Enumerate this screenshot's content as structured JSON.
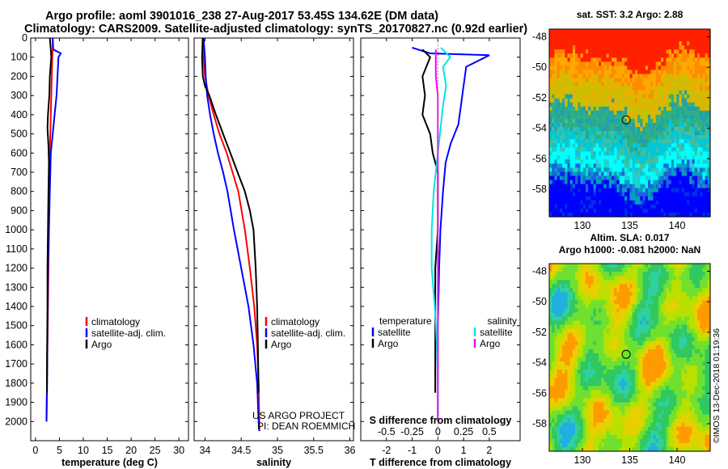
{
  "title_line1": "Argo profile: aoml 3901016_238 27-Aug-2017 53.45S 134.62E (DM data)",
  "title_line2": "Climatology: CARS2009. Satellite-adjusted climatology: synTS_20170827.nc (0.92d earlier)",
  "credit": "©IMOS 13-Dec-2018 01:19:36",
  "colors": {
    "red": "#ff0000",
    "blue": "#0000ff",
    "black": "#000000",
    "cyan": "#00e5e5",
    "magenta": "#ff00ff"
  },
  "chart_data": [
    {
      "type": "line",
      "xlabel": "temperature (deg C)",
      "ylabel": "",
      "xlim": [
        -1,
        32
      ],
      "ylim": [
        0,
        2100
      ],
      "y_reversed": true,
      "xticks": [
        "0",
        "5",
        "10",
        "15",
        "20",
        "25",
        "30"
      ],
      "yticks": [
        "0",
        "100",
        "200",
        "300",
        "400",
        "500",
        "600",
        "700",
        "800",
        "900",
        "1000",
        "1100",
        "1200",
        "1300",
        "1400",
        "1500",
        "1600",
        "1700",
        "1800",
        "1900",
        "2000"
      ],
      "legend": {
        "placement": "lower-center",
        "entries": [
          "climatology",
          "satellite-adj. clim.",
          "Argo"
        ]
      },
      "series": [
        {
          "name": "climatology",
          "color": "red",
          "x": [
            3.6,
            3.6,
            3.5,
            3.4,
            3.3,
            3.2,
            3.1,
            3.0,
            2.9,
            2.8,
            2.7,
            2.6,
            2.5,
            2.4,
            2.3
          ],
          "y": [
            0,
            60,
            100,
            200,
            300,
            400,
            500,
            600,
            800,
            1000,
            1200,
            1400,
            1600,
            1800,
            2000
          ]
        },
        {
          "name": "satellite-adj. clim.",
          "color": "blue",
          "x": [
            3.6,
            3.7,
            5.3,
            4.8,
            4.6,
            4.4,
            4.0,
            3.6,
            3.2,
            3.0,
            2.8,
            2.6,
            2.5,
            2.4,
            2.3
          ],
          "y": [
            0,
            60,
            80,
            100,
            200,
            300,
            400,
            500,
            600,
            800,
            1000,
            1200,
            1500,
            1800,
            2000
          ]
        },
        {
          "name": "Argo",
          "color": "black",
          "x": [
            3.0,
            3.2,
            3.3,
            3.0,
            2.9,
            2.6,
            2.5,
            2.7,
            2.8,
            2.7,
            2.6,
            2.5,
            2.5,
            2.4,
            2.4
          ],
          "y": [
            0,
            60,
            100,
            200,
            300,
            400,
            470,
            560,
            650,
            800,
            1000,
            1200,
            1400,
            1700,
            1850
          ]
        }
      ]
    },
    {
      "type": "line",
      "xlabel": "salinity",
      "ylabel": "",
      "xlim": [
        33.85,
        36.05
      ],
      "ylim": [
        0,
        2100
      ],
      "y_reversed": true,
      "xticks": [
        "34",
        "34.5",
        "35",
        "35.5",
        "36"
      ],
      "yticks": [],
      "legend": {
        "placement": "lower-right",
        "entries": [
          "climatology",
          "satellite-adj. clim.",
          "Argo"
        ]
      },
      "annotation": [
        "US ARGO PROJECT",
        "PI: DEAN ROEMMICH"
      ],
      "series": [
        {
          "name": "climatology",
          "color": "red",
          "x": [
            33.97,
            33.98,
            34.0,
            34.05,
            34.12,
            34.2,
            34.3,
            34.38,
            34.46,
            34.55,
            34.62,
            34.68,
            34.72,
            34.74,
            34.75,
            34.75
          ],
          "y": [
            0,
            100,
            200,
            300,
            400,
            500,
            600,
            700,
            800,
            1000,
            1200,
            1400,
            1600,
            1800,
            2000,
            2050
          ]
        },
        {
          "name": "satellite-adj. clim.",
          "color": "blue",
          "x": [
            33.98,
            34.0,
            34.01,
            34.03,
            34.07,
            34.12,
            34.18,
            34.25,
            34.31,
            34.4,
            34.5,
            34.6,
            34.67,
            34.72,
            34.74,
            34.75
          ],
          "y": [
            0,
            100,
            200,
            300,
            400,
            500,
            600,
            700,
            800,
            1000,
            1200,
            1400,
            1600,
            1800,
            2000,
            2050
          ]
        },
        {
          "name": "Argo",
          "color": "black",
          "x": [
            33.97,
            33.96,
            33.97,
            34.0,
            34.06,
            34.15,
            34.25,
            34.35,
            34.45,
            34.55,
            34.62,
            34.67,
            34.7,
            34.72,
            34.73,
            34.74
          ],
          "y": [
            0,
            100,
            200,
            250,
            300,
            400,
            500,
            600,
            700,
            800,
            900,
            1000,
            1200,
            1400,
            1600,
            1850
          ]
        }
      ]
    },
    {
      "type": "line",
      "xlabel": "T difference from climatology",
      "xlabel_top": "S difference from climatology",
      "xlim": [
        -3,
        3.2
      ],
      "ylim": [
        0,
        2100
      ],
      "y_reversed": true,
      "xticks": [
        "-2",
        "-1",
        "0",
        "1",
        "2"
      ],
      "xticks_top": [
        "-0.5",
        "-0.25",
        "0",
        "0.25",
        "0.5"
      ],
      "yticks": [],
      "legend": {
        "placement": "lower",
        "entries_left_title": "temperature",
        "entries_left": [
          "satellite",
          "Argo"
        ],
        "entries_right_title": "salinity",
        "entries_right": [
          "satellite",
          "Argo"
        ]
      },
      "series": [
        {
          "name": "satellite",
          "group": "temperature",
          "color": "blue",
          "x": [
            -1.0,
            -0.3,
            2.0,
            1.1,
            1.0,
            0.9,
            0.8,
            0.5,
            0.3,
            0.2,
            0.1,
            0.05,
            0.0,
            0.0
          ],
          "y": [
            50,
            80,
            90,
            150,
            250,
            350,
            450,
            550,
            650,
            800,
            1000,
            1200,
            1500,
            2000
          ]
        },
        {
          "name": "Argo",
          "group": "temperature",
          "color": "black",
          "x": [
            -0.6,
            -0.3,
            -0.6,
            -0.5,
            -0.6,
            -0.3,
            -0.2,
            0.0,
            0.0,
            0.0,
            -0.1,
            -0.1,
            -0.1,
            -0.1
          ],
          "y": [
            60,
            100,
            200,
            300,
            400,
            500,
            600,
            700,
            800,
            1000,
            1200,
            1400,
            1700,
            1850
          ]
        },
        {
          "name": "satellite",
          "group": "salinity",
          "color": "cyan",
          "x": [
            0.03,
            0.12,
            0.05,
            0.08,
            0.05,
            0.02,
            0.0,
            -0.04,
            -0.06,
            -0.06,
            -0.03,
            -0.01,
            0.0,
            0.0
          ],
          "y": [
            50,
            100,
            150,
            250,
            350,
            500,
            600,
            800,
            1000,
            1200,
            1400,
            1600,
            1800,
            2000
          ]
        },
        {
          "name": "Argo",
          "group": "salinity",
          "color": "magenta",
          "x": [
            -0.02,
            -0.02,
            -0.02,
            0.0,
            0.0,
            0.0,
            0.0,
            0.0,
            0.0,
            0.0,
            0.0,
            0.0,
            0.0,
            0.0
          ],
          "y": [
            60,
            100,
            200,
            300,
            400,
            500,
            600,
            800,
            1000,
            1200,
            1400,
            1600,
            1800,
            2000
          ]
        }
      ]
    },
    {
      "type": "heatmap",
      "title": "sat. SST: 3.2 Argo: 2.88",
      "xlim": [
        126.5,
        143.5
      ],
      "ylim": [
        -59.8,
        -47.5
      ],
      "xticks": [
        "130",
        "135",
        "140"
      ],
      "yticks": [
        "-48",
        "-50",
        "-52",
        "-54",
        "-56",
        "-58"
      ],
      "marker": {
        "lon": 134.62,
        "lat": -53.45
      }
    },
    {
      "type": "heatmap",
      "title": "Altim. SLA: 0.017",
      "subtitle": "Argo h1000: -0.081 h2000: NaN",
      "xlim": [
        126.5,
        143.5
      ],
      "ylim": [
        -59.8,
        -47.5
      ],
      "xticks": [
        "130",
        "135",
        "140"
      ],
      "yticks": [
        "-48",
        "-50",
        "-52",
        "-54",
        "-56",
        "-58"
      ],
      "marker": {
        "lon": 134.62,
        "lat": -53.45
      }
    }
  ]
}
